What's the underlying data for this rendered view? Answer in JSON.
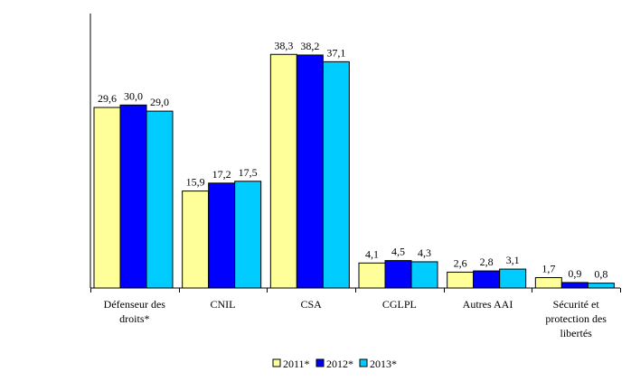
{
  "chart_data": {
    "type": "bar",
    "categories": [
      [
        "Défenseur des",
        "droits*"
      ],
      [
        "CNIL"
      ],
      [
        "CSA"
      ],
      [
        "CGLPL"
      ],
      [
        "Autres AAI"
      ],
      [
        "Sécurité et",
        "protection des",
        "libertés"
      ]
    ],
    "series": [
      {
        "name": "2011*",
        "color": "#FFFF99",
        "values": [
          29.6,
          15.9,
          38.3,
          4.1,
          2.6,
          1.7
        ],
        "labels": [
          "29,6",
          "15,9",
          "38,3",
          "4,1",
          "2,6",
          "1,7"
        ]
      },
      {
        "name": "2012*",
        "color": "#0000FF",
        "values": [
          30.0,
          17.2,
          38.2,
          4.5,
          2.8,
          0.9
        ],
        "labels": [
          "30,0",
          "17,2",
          "38,2",
          "4,5",
          "2,8",
          "0,9"
        ]
      },
      {
        "name": "2013*",
        "color": "#00CCFF",
        "values": [
          29.0,
          17.5,
          37.1,
          4.3,
          3.1,
          0.8
        ],
        "labels": [
          "29,0",
          "17,5",
          "37,1",
          "4,3",
          "3,1",
          "0,8"
        ]
      }
    ],
    "ylim": [
      0,
      45
    ],
    "grid": false,
    "legend": "bottom",
    "title": "",
    "xlabel": "",
    "ylabel": ""
  }
}
